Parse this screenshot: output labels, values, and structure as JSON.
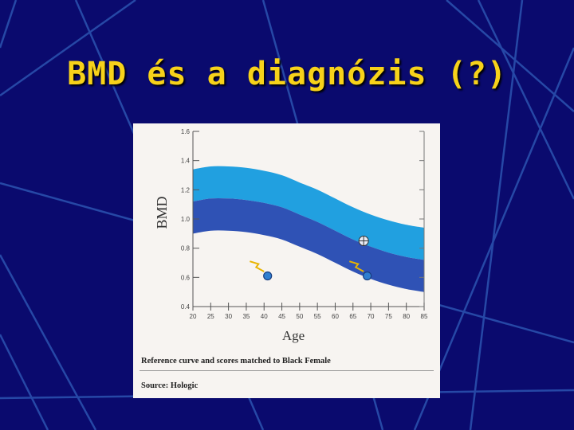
{
  "slide": {
    "title": "BMD és a diagnózis (?)",
    "colors": {
      "background": "#0a0a6e",
      "title": "#f7d21a",
      "line": "#2b53b0"
    }
  },
  "chart_data": {
    "type": "area",
    "ylabel": "BMD",
    "xlabel": "Age",
    "xlim": [
      20,
      85
    ],
    "ylim": [
      0.4,
      1.6
    ],
    "x_ticks": [
      20,
      25,
      30,
      35,
      40,
      45,
      50,
      55,
      60,
      65,
      70,
      75,
      80,
      85
    ],
    "y_ticks": [
      "0.4",
      "0.6",
      "0.8",
      "1.0",
      "1.2",
      "1.4",
      "1.6"
    ],
    "bands": [
      {
        "color": "#21a0e0",
        "x": [
          20,
          25,
          30,
          35,
          40,
          45,
          50,
          55,
          60,
          65,
          70,
          75,
          80,
          85
        ],
        "upper": [
          1.34,
          1.36,
          1.36,
          1.35,
          1.33,
          1.3,
          1.25,
          1.2,
          1.14,
          1.08,
          1.03,
          0.99,
          0.96,
          0.94
        ],
        "lower": [
          1.12,
          1.14,
          1.14,
          1.13,
          1.11,
          1.08,
          1.03,
          0.98,
          0.92,
          0.86,
          0.81,
          0.77,
          0.74,
          0.72
        ]
      },
      {
        "color": "#2f52b5",
        "x": [
          20,
          25,
          30,
          35,
          40,
          45,
          50,
          55,
          60,
          65,
          70,
          75,
          80,
          85
        ],
        "upper": [
          1.12,
          1.14,
          1.14,
          1.13,
          1.11,
          1.08,
          1.03,
          0.98,
          0.92,
          0.86,
          0.81,
          0.77,
          0.74,
          0.72
        ],
        "lower": [
          0.9,
          0.92,
          0.92,
          0.91,
          0.89,
          0.86,
          0.81,
          0.76,
          0.7,
          0.64,
          0.59,
          0.55,
          0.52,
          0.5
        ]
      }
    ],
    "points": [
      {
        "x": 41,
        "y": 0.61,
        "marker": "filled-circle"
      },
      {
        "x": 69,
        "y": 0.61,
        "marker": "filled-circle"
      },
      {
        "x": 68,
        "y": 0.85,
        "marker": "crossed-circle"
      }
    ],
    "arrows": [
      {
        "from": [
          36,
          0.71
        ],
        "to": [
          40,
          0.64
        ]
      },
      {
        "from": [
          64,
          0.71
        ],
        "to": [
          68,
          0.64
        ]
      }
    ],
    "captions": [
      "Reference curve and scores matched to Black Female",
      "Source: Hologic"
    ]
  }
}
